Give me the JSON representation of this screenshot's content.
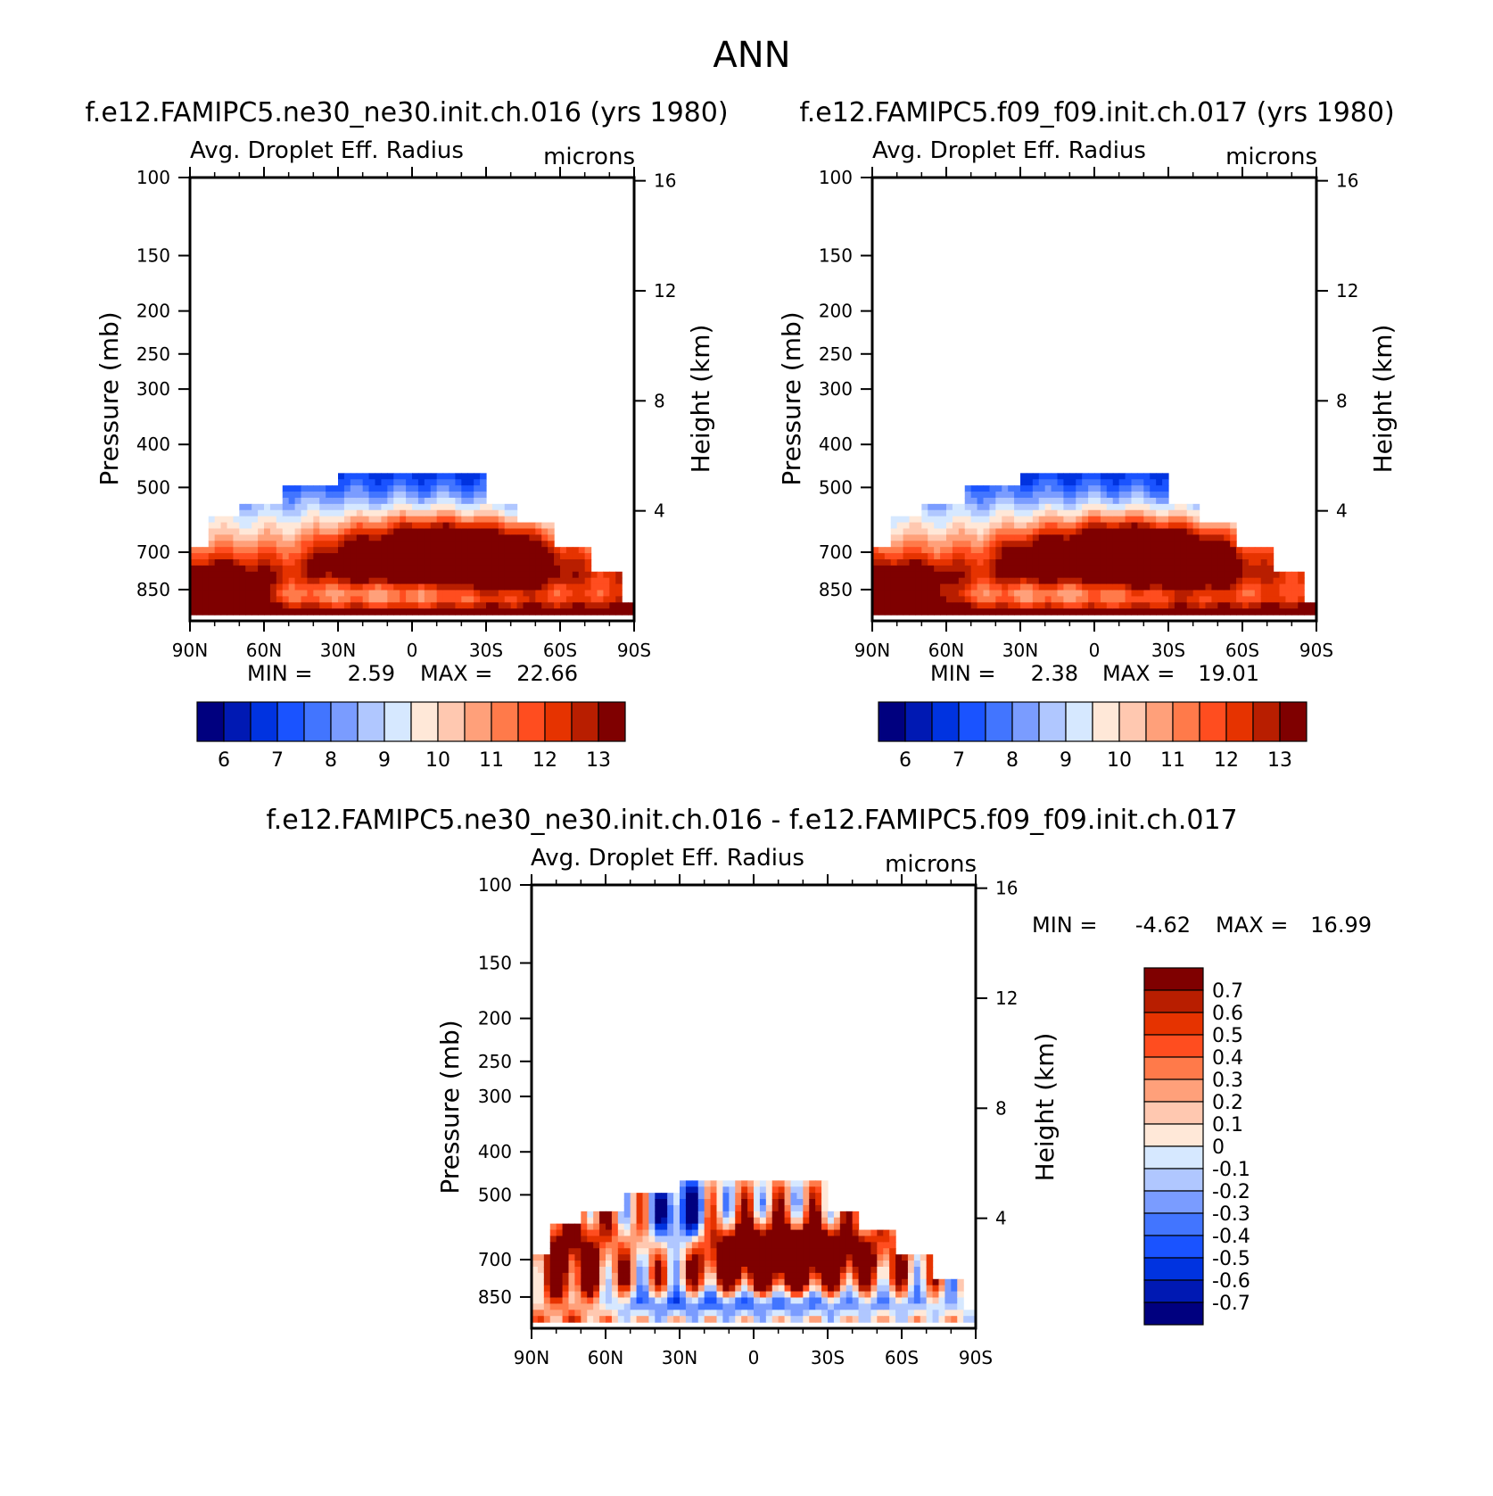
{
  "page_title": "ANN",
  "colors": {
    "std": [
      "#00007f",
      "#0019b3",
      "#0033e0",
      "#1a53ff",
      "#4275ff",
      "#7a9cff",
      "#b0c7ff",
      "#d6e8ff",
      "#ffe8d8",
      "#ffc8b0",
      "#ffa07a",
      "#ff7a4a",
      "#ff4d1f",
      "#e63300",
      "#b81e00",
      "#7f0000"
    ],
    "diff": [
      "#00007f",
      "#0019b3",
      "#0033e0",
      "#1a53ff",
      "#4275ff",
      "#7a9cff",
      "#b0c7ff",
      "#d6e8ff",
      "#ffe8d8",
      "#ffc8b0",
      "#ffa07a",
      "#ff7a4a",
      "#ff4d1f",
      "#e63300",
      "#b81e00",
      "#7f0000"
    ]
  },
  "chart_data": [
    {
      "id": "panel1",
      "type": "heatmap",
      "title": "f.e12.FAMIPC5.ne30_ne30.init.ch.016 (yrs 1980)",
      "subtitle_left": "Avg. Droplet Eff. Radius",
      "subtitle_right": "microns",
      "ylabel": "Pressure (mb)",
      "y2label": "Height (km)",
      "xticks": [
        "90N",
        "60N",
        "30N",
        "0",
        "30S",
        "60S",
        "90S"
      ],
      "yticks": [
        "100",
        "150",
        "200",
        "250",
        "300",
        "400",
        "500",
        "700",
        "850"
      ],
      "y2ticks": [
        "16",
        "12",
        "8",
        "4"
      ],
      "xlim": [
        90,
        -90
      ],
      "ylim": [
        100,
        1000
      ],
      "min_label": "MIN =",
      "min_value": "2.59",
      "max_label": "MAX =",
      "max_value": "22.66",
      "colorbar_labels": [
        "6",
        "7",
        "8",
        "9",
        "10",
        "11",
        "12",
        "13"
      ],
      "contour_levels": [
        5.5,
        6,
        6.5,
        7,
        7.5,
        8,
        8.5,
        9,
        9.5,
        10,
        10.5,
        11,
        11.5,
        12,
        12.5,
        13,
        13.5
      ],
      "field_range": [
        5.5,
        14
      ]
    },
    {
      "id": "panel2",
      "type": "heatmap",
      "title": "f.e12.FAMIPC5.f09_f09.init.ch.017 (yrs 1980)",
      "subtitle_left": "Avg. Droplet Eff. Radius",
      "subtitle_right": "microns",
      "ylabel": "Pressure (mb)",
      "y2label": "Height (km)",
      "xticks": [
        "90N",
        "60N",
        "30N",
        "0",
        "30S",
        "60S",
        "90S"
      ],
      "yticks": [
        "100",
        "150",
        "200",
        "250",
        "300",
        "400",
        "500",
        "700",
        "850"
      ],
      "y2ticks": [
        "16",
        "12",
        "8",
        "4"
      ],
      "xlim": [
        90,
        -90
      ],
      "ylim": [
        100,
        1000
      ],
      "min_label": "MIN =",
      "min_value": "2.38",
      "max_label": "MAX =",
      "max_value": "19.01",
      "colorbar_labels": [
        "6",
        "7",
        "8",
        "9",
        "10",
        "11",
        "12",
        "13"
      ],
      "contour_levels": [
        5.5,
        6,
        6.5,
        7,
        7.5,
        8,
        8.5,
        9,
        9.5,
        10,
        10.5,
        11,
        11.5,
        12,
        12.5,
        13,
        13.5
      ],
      "field_range": [
        5.5,
        14
      ]
    },
    {
      "id": "panel3",
      "type": "heatmap",
      "title": "f.e12.FAMIPC5.ne30_ne30.init.ch.016 - f.e12.FAMIPC5.f09_f09.init.ch.017",
      "subtitle_left": "Avg. Droplet Eff. Radius",
      "subtitle_right": "microns",
      "ylabel": "Pressure (mb)",
      "y2label": "Height (km)",
      "xticks": [
        "90N",
        "60N",
        "30N",
        "0",
        "30S",
        "60S",
        "90S"
      ],
      "yticks": [
        "100",
        "150",
        "200",
        "250",
        "300",
        "400",
        "500",
        "700",
        "850"
      ],
      "y2ticks": [
        "16",
        "12",
        "8",
        "4"
      ],
      "xlim": [
        90,
        -90
      ],
      "ylim": [
        100,
        1000
      ],
      "min_label": "MIN =",
      "min_value": "-4.62",
      "max_label": "MAX =",
      "max_value": "16.99",
      "colorbar_labels": [
        "0.7",
        "0.6",
        "0.5",
        "0.4",
        "0.3",
        "0.2",
        "0.1",
        "0",
        "-0.1",
        "-0.2",
        "-0.3",
        "-0.4",
        "-0.5",
        "-0.6",
        "-0.7"
      ],
      "contour_levels": [
        -0.8,
        -0.7,
        -0.6,
        -0.5,
        -0.4,
        -0.3,
        -0.2,
        -0.1,
        0,
        0.1,
        0.2,
        0.3,
        0.4,
        0.5,
        0.6,
        0.7,
        0.8
      ],
      "field_range": [
        -0.8,
        0.8
      ]
    }
  ]
}
